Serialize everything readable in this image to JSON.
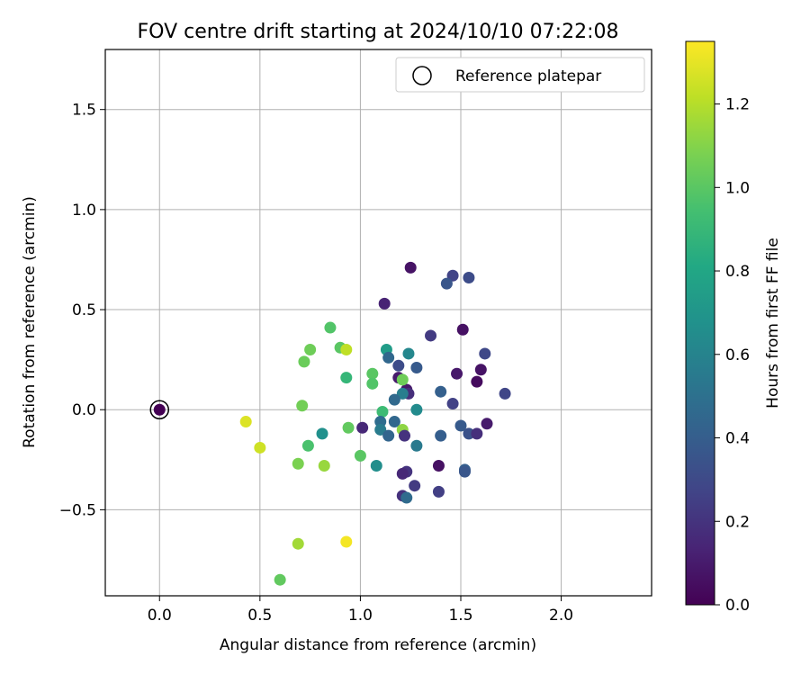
{
  "chart_data": {
    "type": "scatter",
    "title": "FOV centre drift starting at 2024/10/10 07:22:08",
    "xlabel": "Angular distance from reference (arcmin)",
    "ylabel": "Rotation from reference (arcmin)",
    "xlim": [
      -0.27,
      2.45
    ],
    "ylim": [
      -0.93,
      1.8
    ],
    "xticks": [
      0.0,
      0.5,
      1.0,
      1.5,
      2.0
    ],
    "xtick_labels": [
      "0.0",
      "0.5",
      "1.0",
      "1.5",
      "2.0"
    ],
    "yticks": [
      -0.5,
      0.0,
      0.5,
      1.0,
      1.5
    ],
    "ytick_labels": [
      "−0.5",
      "0.0",
      "0.5",
      "1.0",
      "1.5"
    ],
    "grid": true,
    "legend": {
      "position": "top-right",
      "entries": [
        "Reference platepar"
      ]
    },
    "colorbar": {
      "label": "Hours from first FF file",
      "colormap": "viridis",
      "range": [
        0.0,
        1.35
      ],
      "ticks": [
        0.0,
        0.2,
        0.4,
        0.6,
        0.8,
        1.0,
        1.2
      ],
      "tick_labels": [
        "0.0",
        "0.2",
        "0.4",
        "0.6",
        "0.8",
        "1.0",
        "1.2"
      ]
    },
    "reference_point": {
      "x": 0.0,
      "y": 0.0,
      "value": 0.0
    },
    "points": [
      {
        "x": 1.25,
        "y": 0.71,
        "c": 0.07
      },
      {
        "x": 1.46,
        "y": 0.67,
        "c": 0.27
      },
      {
        "x": 1.43,
        "y": 0.63,
        "c": 0.36
      },
      {
        "x": 1.54,
        "y": 0.66,
        "c": 0.31
      },
      {
        "x": 1.12,
        "y": 0.53,
        "c": 0.13
      },
      {
        "x": 1.35,
        "y": 0.37,
        "c": 0.23
      },
      {
        "x": 1.51,
        "y": 0.4,
        "c": 0.06
      },
      {
        "x": 1.62,
        "y": 0.28,
        "c": 0.29
      },
      {
        "x": 1.48,
        "y": 0.18,
        "c": 0.09
      },
      {
        "x": 1.6,
        "y": 0.2,
        "c": 0.07
      },
      {
        "x": 1.58,
        "y": 0.14,
        "c": 0.04
      },
      {
        "x": 1.72,
        "y": 0.08,
        "c": 0.28
      },
      {
        "x": 1.28,
        "y": 0.21,
        "c": 0.38
      },
      {
        "x": 1.24,
        "y": 0.28,
        "c": 0.62
      },
      {
        "x": 1.13,
        "y": 0.3,
        "c": 0.74
      },
      {
        "x": 1.14,
        "y": 0.26,
        "c": 0.45
      },
      {
        "x": 1.19,
        "y": 0.22,
        "c": 0.31
      },
      {
        "x": 1.19,
        "y": 0.16,
        "c": 0.1
      },
      {
        "x": 1.23,
        "y": 0.1,
        "c": 0.09
      },
      {
        "x": 1.24,
        "y": 0.08,
        "c": 0.18
      },
      {
        "x": 1.21,
        "y": 0.08,
        "c": 0.57
      },
      {
        "x": 1.17,
        "y": 0.05,
        "c": 0.46
      },
      {
        "x": 1.4,
        "y": 0.09,
        "c": 0.41
      },
      {
        "x": 1.46,
        "y": 0.03,
        "c": 0.26
      },
      {
        "x": 1.28,
        "y": 0.0,
        "c": 0.64
      },
      {
        "x": 1.11,
        "y": -0.01,
        "c": 0.92
      },
      {
        "x": 1.21,
        "y": 0.15,
        "c": 1.05
      },
      {
        "x": 1.06,
        "y": 0.18,
        "c": 1.0
      },
      {
        "x": 1.06,
        "y": 0.13,
        "c": 0.98
      },
      {
        "x": 0.93,
        "y": 0.16,
        "c": 0.89
      },
      {
        "x": 0.9,
        "y": 0.31,
        "c": 1.0
      },
      {
        "x": 0.93,
        "y": 0.3,
        "c": 1.22
      },
      {
        "x": 0.85,
        "y": 0.41,
        "c": 0.98
      },
      {
        "x": 0.75,
        "y": 0.3,
        "c": 1.05
      },
      {
        "x": 0.72,
        "y": 0.24,
        "c": 1.04
      },
      {
        "x": 0.71,
        "y": 0.02,
        "c": 1.06
      },
      {
        "x": 0.94,
        "y": -0.09,
        "c": 1.02
      },
      {
        "x": 1.01,
        "y": -0.09,
        "c": 0.15
      },
      {
        "x": 1.1,
        "y": -0.06,
        "c": 0.48
      },
      {
        "x": 1.1,
        "y": -0.1,
        "c": 0.56
      },
      {
        "x": 1.17,
        "y": -0.06,
        "c": 0.45
      },
      {
        "x": 1.21,
        "y": -0.1,
        "c": 1.12
      },
      {
        "x": 1.22,
        "y": -0.13,
        "c": 0.2
      },
      {
        "x": 1.14,
        "y": -0.13,
        "c": 0.44
      },
      {
        "x": 1.28,
        "y": -0.18,
        "c": 0.55
      },
      {
        "x": 1.4,
        "y": -0.13,
        "c": 0.4
      },
      {
        "x": 1.5,
        "y": -0.08,
        "c": 0.38
      },
      {
        "x": 1.54,
        "y": -0.12,
        "c": 0.34
      },
      {
        "x": 1.58,
        "y": -0.12,
        "c": 0.18
      },
      {
        "x": 1.63,
        "y": -0.07,
        "c": 0.1
      },
      {
        "x": 1.52,
        "y": -0.3,
        "c": 0.4
      },
      {
        "x": 1.52,
        "y": -0.31,
        "c": 0.36
      },
      {
        "x": 1.39,
        "y": -0.28,
        "c": 0.06
      },
      {
        "x": 1.39,
        "y": -0.41,
        "c": 0.25
      },
      {
        "x": 1.27,
        "y": -0.38,
        "c": 0.23
      },
      {
        "x": 1.23,
        "y": -0.31,
        "c": 0.2
      },
      {
        "x": 1.21,
        "y": -0.32,
        "c": 0.15
      },
      {
        "x": 1.21,
        "y": -0.43,
        "c": 0.19
      },
      {
        "x": 1.23,
        "y": -0.44,
        "c": 0.47
      },
      {
        "x": 1.08,
        "y": -0.28,
        "c": 0.66
      },
      {
        "x": 1.0,
        "y": -0.23,
        "c": 1.0
      },
      {
        "x": 0.81,
        "y": -0.12,
        "c": 0.67
      },
      {
        "x": 0.74,
        "y": -0.18,
        "c": 0.96
      },
      {
        "x": 0.69,
        "y": -0.27,
        "c": 1.08
      },
      {
        "x": 0.82,
        "y": -0.28,
        "c": 1.14
      },
      {
        "x": 0.5,
        "y": -0.19,
        "c": 1.25
      },
      {
        "x": 0.43,
        "y": -0.06,
        "c": 1.28
      },
      {
        "x": 0.69,
        "y": -0.67,
        "c": 1.16
      },
      {
        "x": 0.93,
        "y": -0.66,
        "c": 1.33
      },
      {
        "x": 0.6,
        "y": -0.85,
        "c": 1.02
      },
      {
        "x": 0.0,
        "y": 0.0,
        "c": 0.0
      }
    ]
  }
}
